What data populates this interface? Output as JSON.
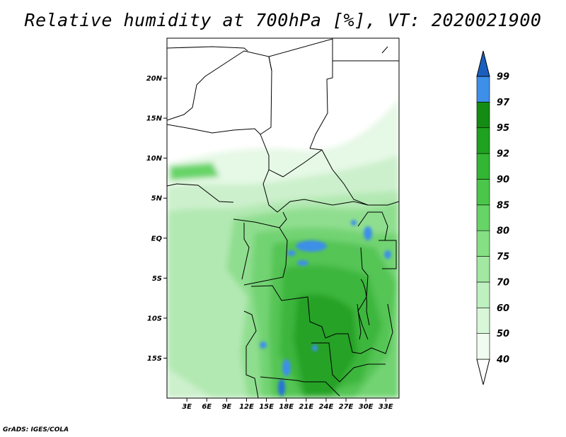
{
  "title": "Relative humidity at 700hPa [%], VT: 2020021900",
  "footer": "GrADS: IGES/COLA",
  "map": {
    "lon_range": [
      0,
      35
    ],
    "lat_range": [
      -20,
      25
    ],
    "lat_ticks": [
      {
        "value": 20,
        "label": "20N"
      },
      {
        "value": 15,
        "label": "15N"
      },
      {
        "value": 10,
        "label": "10N"
      },
      {
        "value": 5,
        "label": "5N"
      },
      {
        "value": 0,
        "label": "EQ"
      },
      {
        "value": -5,
        "label": "5S"
      },
      {
        "value": -10,
        "label": "10S"
      },
      {
        "value": -15,
        "label": "15S"
      }
    ],
    "lon_ticks": [
      {
        "value": 3,
        "label": "3E"
      },
      {
        "value": 6,
        "label": "6E"
      },
      {
        "value": 9,
        "label": "9E"
      },
      {
        "value": 12,
        "label": "12E"
      },
      {
        "value": 15,
        "label": "15E"
      },
      {
        "value": 18,
        "label": "18E"
      },
      {
        "value": 21,
        "label": "21E"
      },
      {
        "value": 24,
        "label": "24E"
      },
      {
        "value": 27,
        "label": "27E"
      },
      {
        "value": 30,
        "label": "30E"
      },
      {
        "value": 33,
        "label": "33E"
      }
    ]
  },
  "colorbar": {
    "levels": [
      {
        "label": "40",
        "color": "#f0fcf0"
      },
      {
        "label": "50",
        "color": "#d8f6d8"
      },
      {
        "label": "60",
        "color": "#bff0bf"
      },
      {
        "label": "70",
        "color": "#a2e8a2"
      },
      {
        "label": "75",
        "color": "#85df85"
      },
      {
        "label": "80",
        "color": "#66d466"
      },
      {
        "label": "85",
        "color": "#4bc64b"
      },
      {
        "label": "90",
        "color": "#33b633"
      },
      {
        "label": "92",
        "color": "#1fa21f"
      },
      {
        "label": "95",
        "color": "#148c14"
      },
      {
        "label": "97",
        "color": "#3d8fe8"
      },
      {
        "label": "99",
        "color": "#2572d6"
      }
    ],
    "low_cap_color": "#ffffff",
    "high_cap_color": "#1a5fc0"
  }
}
